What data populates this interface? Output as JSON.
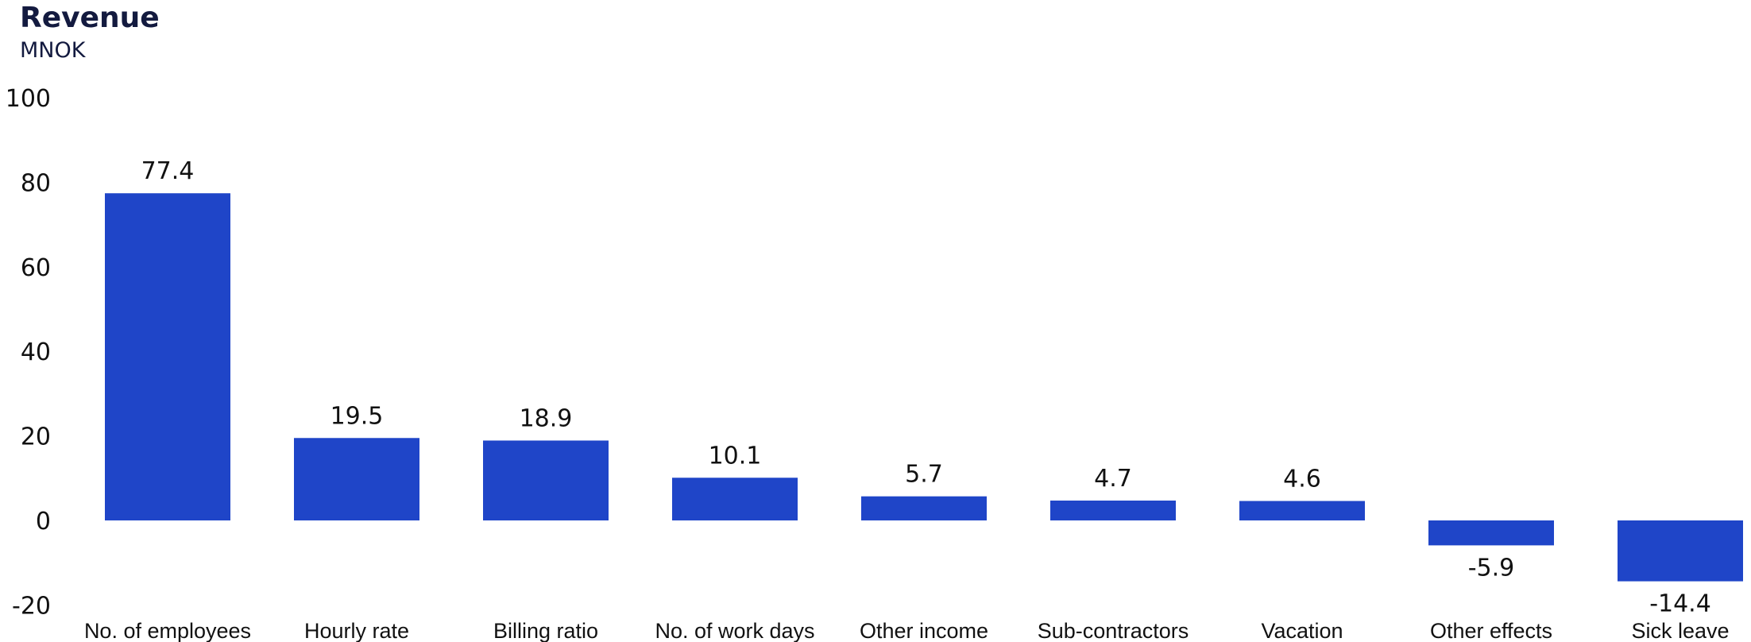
{
  "chart_data": {
    "type": "bar",
    "title": "Revenue",
    "subtitle": "MNOK",
    "xlabel": "",
    "ylabel": "",
    "ylim": [
      -20,
      100
    ],
    "yticks": [
      "-20",
      "0",
      "20",
      "40",
      "60",
      "80",
      "100"
    ],
    "grid": false,
    "bar_color": "#1f45c8",
    "categories": [
      "No. of employees",
      "Hourly rate",
      "Billing ratio",
      "No. of work days",
      "Other income",
      "Sub-contractors",
      "Vacation",
      "Other effects",
      "Sick leave"
    ],
    "values": [
      77.4,
      19.5,
      18.9,
      10.1,
      5.7,
      4.7,
      4.6,
      -5.9,
      -14.4
    ],
    "labels": [
      "77.4",
      "19.5",
      "18.9",
      "10.1",
      "5.7",
      "4.7",
      "4.6",
      "-5.9",
      "-14.4"
    ]
  }
}
